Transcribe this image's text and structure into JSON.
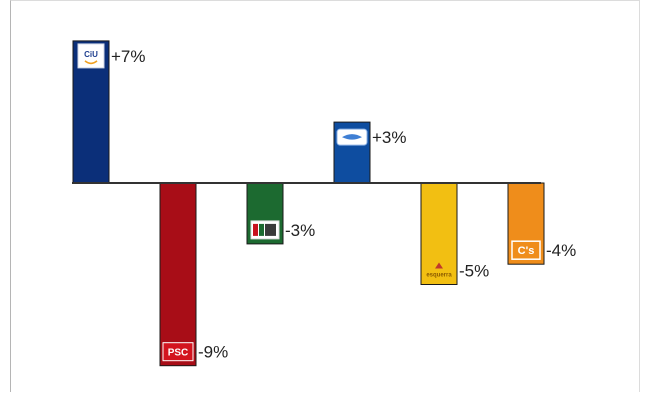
{
  "chart_data": {
    "type": "bar",
    "categories": [
      "CiU",
      "PSC",
      "ICV",
      "PP",
      "ERC",
      "C's"
    ],
    "values": [
      7,
      -9,
      -3,
      3,
      -5,
      -4
    ],
    "labels": [
      "+7%",
      "-9%",
      "-3%",
      "+3%",
      "-5%",
      "-4%"
    ],
    "colors": [
      "#0b2f79",
      "#a80d17",
      "#1c6a30",
      "#0e4da0",
      "#f2bf12",
      "#ef8d1b"
    ],
    "logos": [
      "CiU",
      "PSC",
      "ICV",
      "PP",
      "esquerra",
      "C's"
    ],
    "ylim": [
      -9,
      7
    ],
    "baseline": 0,
    "title": "",
    "xlabel": "",
    "ylabel": "",
    "legend": false,
    "grid": false
  }
}
